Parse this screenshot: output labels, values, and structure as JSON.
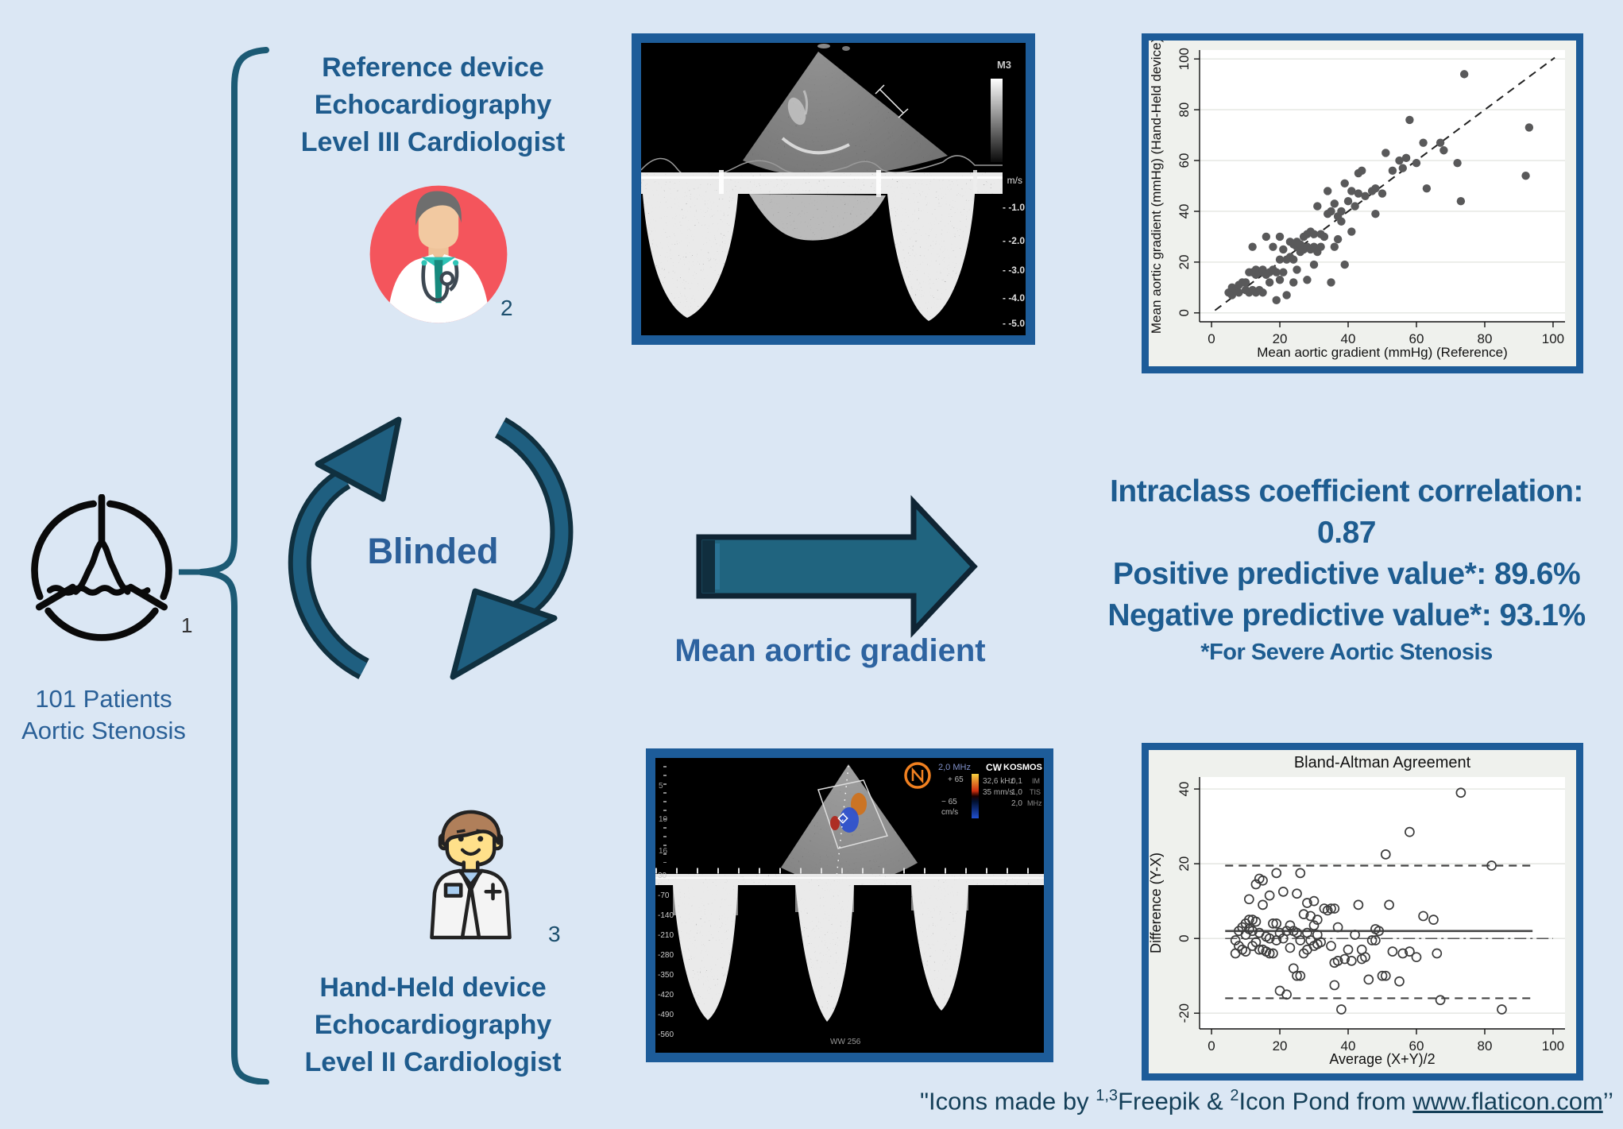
{
  "colors": {
    "background": "#dbe7f4",
    "heading_blue": "#1e5b8d",
    "label_blue": "#2d63a0",
    "results_blue": "#1d5c90",
    "footer_blue": "#143f58",
    "frame_blue": "#1d5c99",
    "arrow_teal": "#20647f",
    "arrow_outline": "#0f2433",
    "brace_teal": "#1c5a74",
    "doctor_circle_red": "#f4555c",
    "scatter_point": "#59595a"
  },
  "patients": {
    "sup": "1",
    "line1": "101 Patients",
    "line2": "Aortic Stenosis"
  },
  "reference": {
    "line1": "Reference device",
    "line2": "Echocardiography",
    "line3": "Level III Cardiologist",
    "sup": "2"
  },
  "handheld": {
    "line1": "Hand-Held device",
    "line2": "Echocardiography",
    "line3": "Level II Cardiologist",
    "sup": "3"
  },
  "blinded_label": "Blinded",
  "arrow_label": "Mean aortic gradient",
  "results": {
    "line1": "Intraclass coefficient correlation:",
    "line2": "0.87",
    "line3": "Positive predictive value*: 89.6%",
    "line4": "Negative predictive value*: 93.1%",
    "footnote": "*For Severe Aortic Stenosis"
  },
  "ultrasound_top": {
    "mode_label": "M3",
    "unit": "m/s",
    "velocity_ticks": [
      "-1.0",
      "-2.0",
      "-3.0",
      "-4.0",
      "-5.0"
    ]
  },
  "ultrasound_bottom": {
    "freq": "2,0 MHz",
    "plus": "+ 65",
    "minus": "− 65",
    "unit": "cm/s",
    "mode": "CW",
    "prf": "32,6 kHz",
    "sweep": "35 mm/s",
    "device": "KOSMOS",
    "mi": "0,1",
    "mi_label": "IM",
    "tis": "1,0",
    "tis_label": "TIS",
    "freq2": "2,0",
    "freq2_label": "MHz",
    "ww": "WW 256",
    "depth_ticks": [
      "5",
      "10",
      "16"
    ],
    "velocity_ticks": [
      "30",
      "-70",
      "-140",
      "-210",
      "-280",
      "-350",
      "-420",
      "-490",
      "-560"
    ]
  },
  "footer": {
    "prefix": "\"Icons made by ",
    "sup1": "1,3",
    "freepik": "Freepik & ",
    "sup2": "2",
    "middle": "Icon Pond from ",
    "link": "www.flaticon.com",
    "suffix": "’’"
  },
  "chart_data": [
    {
      "type": "scatter",
      "title": "",
      "xlabel": "Mean aortic gradient (mmHg) (Reference)",
      "ylabel": "Mean aortic gradient (mmHg) (Hand-Held device)",
      "xlim": [
        0,
        100
      ],
      "ylim": [
        0,
        100
      ],
      "xticks": [
        0,
        20,
        40,
        60,
        80,
        100
      ],
      "yticks": [
        0,
        20,
        40,
        60,
        80,
        100
      ],
      "grid": "horizontal",
      "marker": "filled",
      "point_color": "#59595a",
      "identity_line": {
        "from": [
          1,
          1
        ],
        "to": [
          100.5,
          100.5
        ],
        "style": "dashed"
      },
      "points": [
        [
          5,
          8
        ],
        [
          6,
          7
        ],
        [
          6,
          10
        ],
        [
          7,
          9
        ],
        [
          8,
          11
        ],
        [
          8,
          8
        ],
        [
          9,
          12
        ],
        [
          10,
          9
        ],
        [
          10,
          12
        ],
        [
          11,
          8
        ],
        [
          11,
          16
        ],
        [
          12,
          9
        ],
        [
          12,
          16
        ],
        [
          12,
          26
        ],
        [
          13,
          8
        ],
        [
          13,
          15
        ],
        [
          13,
          17
        ],
        [
          14,
          9
        ],
        [
          14,
          16
        ],
        [
          15,
          16
        ],
        [
          15,
          17
        ],
        [
          15,
          8
        ],
        [
          16,
          15
        ],
        [
          16,
          30
        ],
        [
          17,
          12
        ],
        [
          17,
          16
        ],
        [
          18,
          17
        ],
        [
          18,
          26
        ],
        [
          19,
          5
        ],
        [
          19,
          16
        ],
        [
          20,
          13
        ],
        [
          20,
          21
        ],
        [
          20,
          30
        ],
        [
          21,
          16
        ],
        [
          21,
          25
        ],
        [
          22,
          7
        ],
        [
          22,
          21
        ],
        [
          23,
          22
        ],
        [
          23,
          28
        ],
        [
          24,
          12
        ],
        [
          24,
          21
        ],
        [
          24,
          27
        ],
        [
          25,
          17
        ],
        [
          25,
          26
        ],
        [
          25,
          28
        ],
        [
          26,
          24
        ],
        [
          26,
          27
        ],
        [
          27,
          25
        ],
        [
          27,
          30
        ],
        [
          28,
          13
        ],
        [
          28,
          26
        ],
        [
          28,
          31
        ],
        [
          29,
          25
        ],
        [
          29,
          32
        ],
        [
          30,
          19
        ],
        [
          30,
          26
        ],
        [
          30,
          31
        ],
        [
          31,
          24
        ],
        [
          31,
          42
        ],
        [
          32,
          26
        ],
        [
          32,
          31
        ],
        [
          33,
          30
        ],
        [
          34,
          39
        ],
        [
          34,
          48
        ],
        [
          35,
          12
        ],
        [
          35,
          40
        ],
        [
          36,
          26
        ],
        [
          36,
          43
        ],
        [
          37,
          29
        ],
        [
          37,
          38
        ],
        [
          38,
          36
        ],
        [
          38,
          40
        ],
        [
          39,
          19
        ],
        [
          39,
          51
        ],
        [
          40,
          44
        ],
        [
          41,
          32
        ],
        [
          41,
          48
        ],
        [
          42,
          42
        ],
        [
          43,
          47
        ],
        [
          43,
          55
        ],
        [
          44,
          56
        ],
        [
          45,
          46
        ],
        [
          47,
          48
        ],
        [
          48,
          39
        ],
        [
          48,
          49
        ],
        [
          50,
          47
        ],
        [
          51,
          63
        ],
        [
          53,
          56
        ],
        [
          55,
          60
        ],
        [
          56,
          57
        ],
        [
          57,
          61
        ],
        [
          58,
          76
        ],
        [
          60,
          59
        ],
        [
          62,
          67
        ],
        [
          63,
          49
        ],
        [
          67,
          67
        ],
        [
          68,
          64
        ],
        [
          72,
          59
        ],
        [
          73,
          44
        ],
        [
          74,
          94
        ],
        [
          92,
          54
        ],
        [
          93,
          73
        ]
      ]
    },
    {
      "type": "scatter",
      "title": "Bland-Altman Agreement",
      "xlabel": "Average (X+Y)/2",
      "ylabel": "Difference (Y-X)",
      "xlim": [
        0,
        100
      ],
      "ylim": [
        -22,
        41
      ],
      "xticks": [
        0,
        20,
        40,
        60,
        80,
        100
      ],
      "yticks": [
        -20,
        0,
        20,
        40
      ],
      "grid": "horizontal",
      "marker": "open",
      "point_color": "#3c3c3c",
      "ref_lines": [
        {
          "y": 2,
          "style": "solid",
          "x_from": 4,
          "x_to": 94,
          "label": "mean difference"
        },
        {
          "y": 0,
          "style": "dashdot",
          "x_from": 4,
          "x_to": 100,
          "label": "zero"
        },
        {
          "y": 19.5,
          "style": "dashed",
          "x_from": 4,
          "x_to": 94,
          "label": "upper limit of agreement"
        },
        {
          "y": -16,
          "style": "dashed",
          "x_from": 4,
          "x_to": 94,
          "label": "lower limit of agreement"
        }
      ],
      "points": [
        [
          7,
          -0.5
        ],
        [
          7,
          -4
        ],
        [
          8,
          2
        ],
        [
          8,
          -2
        ],
        [
          9,
          3
        ],
        [
          9,
          -3
        ],
        [
          10,
          4
        ],
        [
          10,
          1
        ],
        [
          10,
          -3.5
        ],
        [
          11,
          5
        ],
        [
          11,
          10.5
        ],
        [
          11,
          2.5
        ],
        [
          12,
          5
        ],
        [
          12,
          2
        ],
        [
          12,
          -2
        ],
        [
          13,
          4.5
        ],
        [
          13,
          14.5
        ],
        [
          13,
          -1
        ],
        [
          14,
          16
        ],
        [
          14,
          1.5
        ],
        [
          14,
          -3
        ],
        [
          15,
          15.5
        ],
        [
          15,
          9
        ],
        [
          15,
          -3
        ],
        [
          16,
          0.5
        ],
        [
          16,
          -3.5
        ],
        [
          17,
          11.5
        ],
        [
          17,
          0
        ],
        [
          17,
          -4
        ],
        [
          18,
          4
        ],
        [
          18,
          -4
        ],
        [
          19,
          17.5
        ],
        [
          19,
          4
        ],
        [
          19,
          -0.5
        ],
        [
          20,
          1.5
        ],
        [
          20,
          -14
        ],
        [
          21,
          12.5
        ],
        [
          21,
          0
        ],
        [
          22,
          2
        ],
        [
          22,
          -15
        ],
        [
          23,
          3.5
        ],
        [
          23,
          -2.5
        ],
        [
          24,
          2
        ],
        [
          24,
          -8
        ],
        [
          25,
          12
        ],
        [
          25,
          1.5
        ],
        [
          25,
          -10
        ],
        [
          26,
          17.5
        ],
        [
          26,
          -0.5
        ],
        [
          26,
          -10
        ],
        [
          27,
          6.5
        ],
        [
          27,
          -4
        ],
        [
          28,
          9.5
        ],
        [
          28,
          1.5
        ],
        [
          28,
          -3
        ],
        [
          29,
          6
        ],
        [
          29,
          -0.5
        ],
        [
          30,
          10
        ],
        [
          30,
          3.5
        ],
        [
          30,
          -2
        ],
        [
          31,
          5
        ],
        [
          31,
          1
        ],
        [
          31,
          -1.5
        ],
        [
          32,
          -1
        ],
        [
          33,
          8
        ],
        [
          34,
          7.5
        ],
        [
          35,
          8
        ],
        [
          35,
          -2
        ],
        [
          36,
          8
        ],
        [
          36,
          -6.5
        ],
        [
          36,
          -12.5
        ],
        [
          37,
          3
        ],
        [
          37,
          -6
        ],
        [
          38,
          -19
        ],
        [
          39,
          -5.5
        ],
        [
          40,
          -3
        ],
        [
          41,
          -6
        ],
        [
          42,
          1
        ],
        [
          43,
          9
        ],
        [
          44,
          -3
        ],
        [
          44,
          -5.5
        ],
        [
          45,
          -5
        ],
        [
          46,
          -11
        ],
        [
          47,
          -0.5
        ],
        [
          48,
          2.5
        ],
        [
          48,
          -0.5
        ],
        [
          49,
          2
        ],
        [
          50,
          -10
        ],
        [
          51,
          22.5
        ],
        [
          51,
          -10
        ],
        [
          52,
          9
        ],
        [
          53,
          -3.5
        ],
        [
          55,
          -11.5
        ],
        [
          56,
          -4
        ],
        [
          58,
          28.5
        ],
        [
          58,
          -3.5
        ],
        [
          60,
          -5
        ],
        [
          62,
          6
        ],
        [
          65,
          5
        ],
        [
          66,
          -4
        ],
        [
          67,
          -16.5
        ],
        [
          73,
          39
        ],
        [
          82,
          19.5
        ],
        [
          85,
          -19
        ]
      ]
    }
  ]
}
